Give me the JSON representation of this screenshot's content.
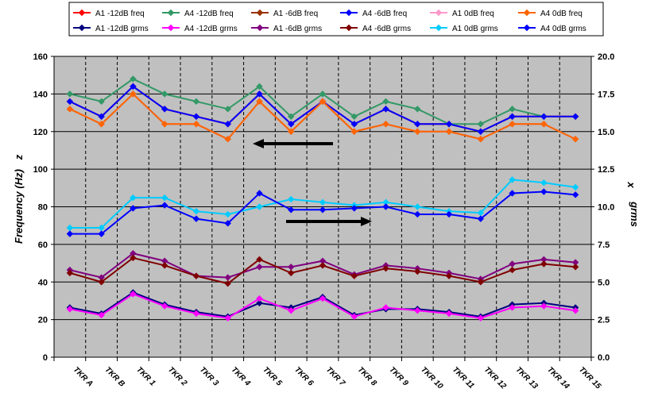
{
  "chart_data": {
    "type": "line",
    "title": "",
    "xlabel": "",
    "ylabel": "Frequency (Hz)",
    "y2label": "grms",
    "inner_label_left": "z",
    "inner_label_right": "x",
    "ylim": [
      0,
      160
    ],
    "y2lim": [
      0.0,
      20.0
    ],
    "yticks": [
      "0",
      "20",
      "40",
      "60",
      "80",
      "100",
      "120",
      "140",
      "160"
    ],
    "y2ticks": [
      "0.0",
      "2.5",
      "5.0",
      "7.5",
      "10.0",
      "12.5",
      "15.0",
      "17.5",
      "20.0"
    ],
    "categories": [
      "TKR A",
      "TKR B",
      "TKR 1",
      "TKR 2",
      "TKR 3",
      "TKR 4",
      "TKR 5",
      "TKR 6",
      "TKR 7",
      "TKR 8",
      "TKR 9",
      "TKR 10",
      "TKR 11",
      "TKR 12",
      "TKR 13",
      "TKR 14",
      "TKR 15"
    ],
    "grid": true,
    "legend_position": "top",
    "series": [
      {
        "name": "A1 -12dB freq",
        "color": "#ff0000",
        "marker": "diamond",
        "axis": "left",
        "values": [
          136,
          128,
          144,
          132,
          128,
          124,
          140,
          124,
          136,
          124,
          132,
          124,
          124,
          120,
          128,
          128,
          128
        ]
      },
      {
        "name": "A4 -12dB freq",
        "color": "#339966",
        "marker": "diamond",
        "axis": "left",
        "values": [
          140,
          136,
          148,
          140,
          136,
          132,
          144,
          128,
          140,
          128,
          136,
          132,
          124,
          124,
          132,
          128,
          null
        ]
      },
      {
        "name": "A1 -6dB freq",
        "color": "#993300",
        "marker": "diamond",
        "axis": "left",
        "values": [
          132,
          124,
          140,
          124,
          124,
          116,
          136,
          120,
          136,
          120,
          124,
          120,
          120,
          116,
          124,
          124,
          116
        ]
      },
      {
        "name": "A4 -6dB freq",
        "color": "#0000ff",
        "marker": "diamond",
        "axis": "left",
        "values": [
          136,
          128,
          144,
          132,
          128,
          124,
          140,
          124,
          136,
          124,
          132,
          124,
          124,
          120,
          128,
          128,
          128
        ]
      },
      {
        "name": "A1 0dB freq",
        "color": "#ff99cc",
        "marker": "diamond",
        "axis": "left",
        "values": [
          132,
          124,
          140,
          124,
          124,
          116,
          136,
          120,
          136,
          120,
          124,
          120,
          120,
          116,
          124,
          124,
          116
        ]
      },
      {
        "name": "A4 0dB freq",
        "color": "#ff6600",
        "marker": "diamond",
        "axis": "left",
        "values": [
          132,
          124,
          140,
          124,
          124,
          116,
          136,
          120,
          136,
          120,
          124,
          120,
          120,
          116,
          124,
          124,
          116
        ]
      },
      {
        "name": "A1 -12dB grms",
        "color": "#000080",
        "marker": "diamond",
        "axis": "right",
        "values": [
          3.3,
          2.9,
          4.3,
          3.5,
          3.0,
          2.7,
          3.6,
          3.3,
          4.0,
          2.8,
          3.2,
          3.2,
          3.0,
          2.7,
          3.5,
          3.6,
          3.3
        ]
      },
      {
        "name": "A4 -12dB grms",
        "color": "#ff00ff",
        "marker": "diamond",
        "axis": "right",
        "values": [
          3.2,
          2.8,
          4.2,
          3.4,
          2.9,
          2.6,
          3.9,
          3.1,
          3.9,
          2.7,
          3.3,
          3.1,
          2.9,
          2.6,
          3.3,
          3.4,
          3.1
        ]
      },
      {
        "name": "A1 -6dB grms",
        "color": "#800080",
        "marker": "diamond",
        "axis": "right",
        "values": [
          5.8,
          5.3,
          6.9,
          6.4,
          5.4,
          5.3,
          6.0,
          6.0,
          6.4,
          5.5,
          6.1,
          5.9,
          5.6,
          5.2,
          6.2,
          6.5,
          6.3
        ]
      },
      {
        "name": "A4 -6dB grms",
        "color": "#800000",
        "marker": "diamond",
        "axis": "right",
        "values": [
          5.6,
          5.0,
          6.6,
          6.1,
          5.4,
          4.9,
          6.5,
          5.6,
          6.1,
          5.4,
          5.9,
          5.7,
          5.4,
          5.0,
          5.8,
          6.2,
          6.0
        ]
      },
      {
        "name": "A1 0dB grms",
        "color": "#00ccff",
        "marker": "diamond",
        "axis": "right",
        "values": [
          8.6,
          8.6,
          10.6,
          10.6,
          9.7,
          9.5,
          10.0,
          10.5,
          10.3,
          10.1,
          10.3,
          10.0,
          9.7,
          9.6,
          11.8,
          11.6,
          11.3
        ]
      },
      {
        "name": "A4 0dB grms",
        "color": "#0000ff",
        "marker": "diamond",
        "axis": "right",
        "values": [
          8.2,
          8.2,
          9.9,
          10.1,
          9.2,
          8.9,
          10.9,
          9.8,
          9.8,
          9.9,
          10.0,
          9.5,
          9.5,
          9.2,
          10.9,
          11.0,
          10.8
        ]
      }
    ],
    "annotations": [
      {
        "type": "arrow",
        "direction": "left",
        "meaning": "frequency series read on left axis"
      },
      {
        "type": "arrow",
        "direction": "right",
        "meaning": "grms series read on right axis"
      }
    ]
  }
}
